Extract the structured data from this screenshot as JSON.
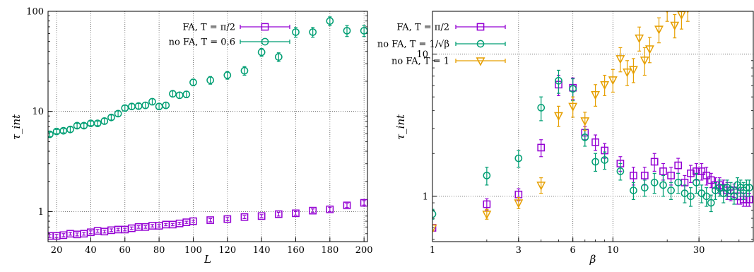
{
  "chart_data": [
    {
      "type": "scatter",
      "xlabel": "L",
      "ylabel": "τ_int",
      "xlim": [
        15,
        202
      ],
      "ylim": [
        0.5,
        100
      ],
      "yscale": "log",
      "xticks": [
        "20",
        "40",
        "60",
        "80",
        "100",
        "120",
        "140",
        "160",
        "180",
        "200"
      ],
      "yticks": [
        "1",
        "10",
        "100"
      ],
      "grid": true,
      "legend_position": "top-right",
      "series": [
        {
          "name": "FA, T = π/2",
          "color": "#9400D3",
          "marker": "square",
          "x": [
            16,
            20,
            24,
            28,
            32,
            36,
            40,
            44,
            48,
            52,
            56,
            60,
            64,
            68,
            72,
            76,
            80,
            84,
            88,
            92,
            96,
            100,
            110,
            120,
            130,
            140,
            150,
            160,
            170,
            180,
            190,
            200
          ],
          "y": [
            0.57,
            0.57,
            0.58,
            0.6,
            0.59,
            0.6,
            0.62,
            0.64,
            0.63,
            0.65,
            0.66,
            0.66,
            0.68,
            0.7,
            0.7,
            0.72,
            0.72,
            0.74,
            0.74,
            0.76,
            0.78,
            0.8,
            0.82,
            0.84,
            0.88,
            0.9,
            0.94,
            0.96,
            1.02,
            1.05,
            1.15,
            1.22
          ],
          "err": [
            0.02,
            0.02,
            0.02,
            0.02,
            0.02,
            0.02,
            0.02,
            0.02,
            0.02,
            0.02,
            0.02,
            0.02,
            0.02,
            0.02,
            0.02,
            0.02,
            0.02,
            0.02,
            0.02,
            0.02,
            0.02,
            0.02,
            0.03,
            0.03,
            0.03,
            0.03,
            0.04,
            0.04,
            0.04,
            0.05,
            0.05,
            0.06
          ]
        },
        {
          "name": "no FA, T = 0.6",
          "color": "#009E73",
          "marker": "circle",
          "x": [
            16,
            20,
            24,
            28,
            32,
            36,
            40,
            44,
            48,
            52,
            56,
            60,
            64,
            68,
            72,
            76,
            80,
            84,
            88,
            92,
            96,
            100,
            110,
            120,
            130,
            140,
            150,
            160,
            170,
            180,
            190,
            200
          ],
          "y": [
            5.9,
            6.3,
            6.4,
            6.6,
            7.2,
            7.2,
            7.6,
            7.6,
            8.0,
            8.7,
            9.5,
            10.8,
            11.2,
            11.3,
            11.5,
            12.5,
            11.2,
            11.5,
            15,
            14.5,
            14.8,
            19.5,
            20.5,
            23,
            25.5,
            39,
            35,
            62,
            62,
            80,
            64,
            64
          ],
          "err": [
            0.3,
            0.3,
            0.3,
            0.4,
            0.4,
            0.4,
            0.4,
            0.4,
            0.5,
            0.5,
            0.6,
            0.7,
            0.7,
            0.7,
            0.8,
            0.9,
            0.8,
            0.8,
            1.0,
            1.0,
            1.1,
            1.5,
            1.8,
            2,
            2.5,
            3.5,
            3.5,
            7,
            7,
            8,
            8,
            8
          ]
        }
      ]
    },
    {
      "type": "scatter",
      "xlabel": "β",
      "ylabel": "τ_int",
      "xscale": "log",
      "yscale": "log",
      "xlim": [
        1,
        60
      ],
      "ylim": [
        0.48,
        20
      ],
      "xticks": [
        "1",
        "3",
        "6",
        "10",
        "30"
      ],
      "yticks": [
        "1",
        "10"
      ],
      "grid": true,
      "legend_position": "top-right",
      "series": [
        {
          "name": "FA, T = π/2",
          "color": "#9400D3",
          "marker": "square",
          "x": [
            1,
            2,
            3,
            4,
            5,
            6,
            7,
            8,
            9,
            11,
            13,
            15,
            17,
            19,
            21,
            23,
            25,
            27,
            29,
            31,
            33,
            35,
            37,
            39,
            41,
            43,
            45,
            47,
            49,
            51,
            53,
            55,
            57
          ],
          "y": [
            0.6,
            0.88,
            1.03,
            2.2,
            6.1,
            5.8,
            2.8,
            2.4,
            2.1,
            1.7,
            1.4,
            1.4,
            1.75,
            1.5,
            1.4,
            1.65,
            1.25,
            1.45,
            1.5,
            1.5,
            1.4,
            1.3,
            1.2,
            1.2,
            1.15,
            1.1,
            1.05,
            1.1,
            1.0,
            1.0,
            0.95,
            0.95,
            0.95
          ],
          "err": [
            0.03,
            0.08,
            0.1,
            0.3,
            1.0,
            1.0,
            0.3,
            0.3,
            0.25,
            0.2,
            0.2,
            0.2,
            0.25,
            0.2,
            0.2,
            0.2,
            0.15,
            0.2,
            0.2,
            0.2,
            0.2,
            0.15,
            0.15,
            0.15,
            0.15,
            0.15,
            0.12,
            0.12,
            0.12,
            0.12,
            0.1,
            0.1,
            0.1
          ]
        },
        {
          "name": "no FA, T = 1/√β",
          "color": "#009E73",
          "marker": "circle",
          "x": [
            1,
            2,
            3,
            4,
            5,
            6,
            7,
            8,
            9,
            11,
            13,
            15,
            17,
            19,
            21,
            23,
            25,
            27,
            29,
            31,
            33,
            35,
            37,
            39,
            41,
            43,
            45,
            47,
            49,
            51,
            53,
            55,
            57
          ],
          "y": [
            0.75,
            1.4,
            1.85,
            4.2,
            6.5,
            5.7,
            2.6,
            1.75,
            1.8,
            1.5,
            1.1,
            1.15,
            1.25,
            1.2,
            1.1,
            1.25,
            1.05,
            1.0,
            1.25,
            1.05,
            1.0,
            0.9,
            1.1,
            1.15,
            1.05,
            1.15,
            1.1,
            1.0,
            1.2,
            1.15,
            1.1,
            1.15,
            1.15
          ],
          "err": [
            0.06,
            0.2,
            0.25,
            0.8,
            1.2,
            1.0,
            0.35,
            0.25,
            0.25,
            0.2,
            0.15,
            0.15,
            0.2,
            0.2,
            0.15,
            0.2,
            0.15,
            0.15,
            0.2,
            0.15,
            0.15,
            0.12,
            0.15,
            0.15,
            0.15,
            0.15,
            0.15,
            0.12,
            0.15,
            0.15,
            0.15,
            0.15,
            0.15
          ]
        },
        {
          "name": "no FA, T = 1",
          "color": "#E69F00",
          "marker": "triangle-down",
          "x": [
            1,
            2,
            3,
            4,
            5,
            6,
            7,
            8,
            9,
            10,
            11,
            12,
            13,
            14,
            15,
            16,
            18,
            20,
            22,
            24,
            26
          ],
          "y": [
            0.6,
            0.75,
            0.9,
            1.2,
            3.7,
            4.3,
            3.4,
            5.2,
            6.1,
            6.6,
            9.3,
            7.5,
            7.8,
            13,
            9.1,
            10.9,
            15,
            21,
            16,
            19,
            21
          ],
          "err": [
            0.03,
            0.06,
            0.08,
            0.15,
            0.6,
            0.7,
            0.5,
            0.9,
            1.0,
            1.2,
            1.8,
            1.5,
            1.5,
            2.5,
            2,
            2.2,
            3,
            4,
            3,
            4,
            4
          ]
        }
      ]
    }
  ]
}
